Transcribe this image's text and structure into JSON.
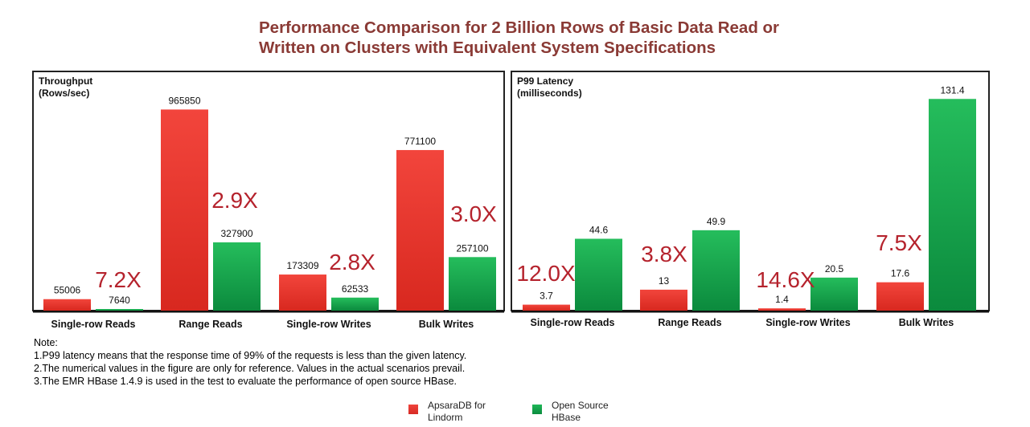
{
  "title": {
    "line1": "Performance Comparison for 2 Billion Rows of Basic Data Read or",
    "line2": "Written on Clusters with Equivalent System Specifications"
  },
  "colors": {
    "lindorm": "#e8302a",
    "hbase": "#10a34a",
    "ratio": "#b5232d",
    "title": "#8a3a35"
  },
  "notes": [
    "Note:",
    "1.P99 latency means that the response time of 99% of the requests is less than the given latency.",
    "2.The numerical values in the figure are only for reference. Values in the actual scenarios prevail.",
    "3.The EMR HBase 1.4.9 is used in the test to evaluate the performance of open source HBase."
  ],
  "legend": [
    {
      "line1": "ApsaraDB for",
      "line2": "Lindorm",
      "color": "#e8302a"
    },
    {
      "line1": "Open Source",
      "line2": "HBase",
      "color": "#10a34a"
    }
  ],
  "chart_data": [
    {
      "type": "bar",
      "ylabel_line1": "Throughput",
      "ylabel_line2": "(Rows/sec)",
      "categories": [
        "Single-row Reads",
        "Range Reads",
        "Single-row Writes",
        "Bulk Writes"
      ],
      "series": [
        {
          "name": "ApsaraDB for Lindorm",
          "values": [
            55006,
            965850,
            173309,
            771100
          ]
        },
        {
          "name": "Open Source HBase",
          "values": [
            7640,
            327900,
            62533,
            257100
          ]
        }
      ],
      "ratios": [
        "7.2X",
        "2.9X",
        "2.8X",
        "3.0X"
      ],
      "ylim": [
        0,
        1060000
      ],
      "grid": false
    },
    {
      "type": "bar",
      "ylabel_line1": "P99 Latency",
      "ylabel_line2": "(milliseconds)",
      "categories": [
        "Single-row Reads",
        "Range Reads",
        "Single-row Writes",
        "Bulk Writes"
      ],
      "series": [
        {
          "name": "ApsaraDB for Lindorm",
          "values": [
            3.7,
            13,
            1.4,
            17.6
          ]
        },
        {
          "name": "Open Source HBase",
          "values": [
            44.6,
            49.9,
            20.5,
            131.4
          ]
        }
      ],
      "ratios": [
        "12.0X",
        "3.8X",
        "14.6X",
        "7.5X"
      ],
      "ylim": [
        0,
        140
      ],
      "grid": false
    }
  ]
}
